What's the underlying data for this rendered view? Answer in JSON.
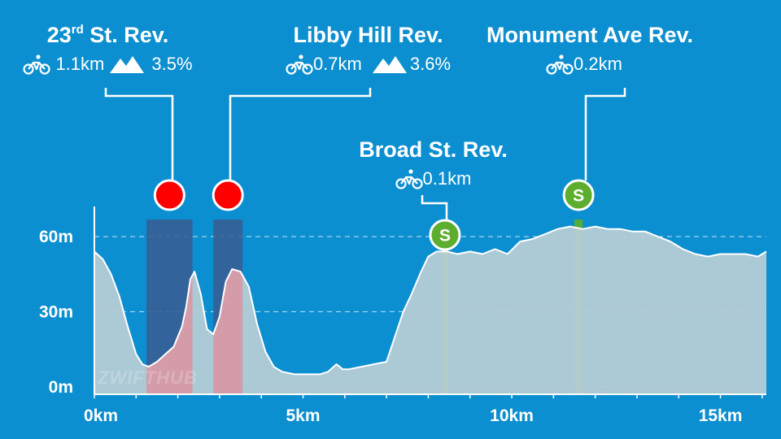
{
  "chart_data": {
    "type": "area",
    "title": "",
    "xlabel": "",
    "ylabel": "",
    "x_unit": "km",
    "y_unit": "m",
    "xlim": [
      0,
      16.1
    ],
    "ylim": [
      -3,
      72
    ],
    "x_ticks": [
      0,
      5,
      10,
      15
    ],
    "x_tick_labels": [
      "0km",
      "5km",
      "10km",
      "15km"
    ],
    "y_ticks": [
      0,
      30,
      60
    ],
    "y_tick_labels": [
      "0m",
      "30m",
      "60m"
    ],
    "grid": "horizontal dashed",
    "elevation_profile": {
      "x": [
        0,
        0.2,
        0.4,
        0.6,
        0.8,
        1.0,
        1.15,
        1.3,
        1.5,
        1.7,
        1.9,
        2.1,
        2.2,
        2.3,
        2.4,
        2.55,
        2.7,
        2.85,
        3.0,
        3.15,
        3.3,
        3.5,
        3.7,
        3.9,
        4.1,
        4.3,
        4.5,
        4.8,
        5.1,
        5.4,
        5.6,
        5.8,
        5.95,
        6.1,
        6.4,
        6.7,
        7.0,
        7.2,
        7.4,
        7.6,
        7.8,
        8.0,
        8.2,
        8.45,
        8.7,
        9.0,
        9.3,
        9.6,
        9.9,
        10.2,
        10.5,
        10.8,
        11.1,
        11.4,
        11.7,
        12.0,
        12.3,
        12.6,
        12.9,
        13.2,
        13.5,
        13.8,
        14.1,
        14.4,
        14.7,
        15.0,
        15.3,
        15.6,
        15.9,
        16.1
      ],
      "y": [
        54,
        51,
        45,
        36,
        24,
        13,
        9,
        8,
        10,
        13,
        16,
        24,
        32,
        43,
        46,
        37,
        23,
        21,
        28,
        42,
        47,
        46,
        40,
        25,
        14,
        8,
        6,
        5,
        5,
        5,
        6,
        9,
        7,
        7,
        8,
        9,
        10,
        20,
        30,
        37,
        45,
        52,
        54,
        54,
        53,
        54,
        53,
        55,
        53,
        58,
        59,
        61,
        63,
        64,
        63,
        64,
        63,
        63,
        62,
        62,
        60,
        58,
        55,
        53,
        52,
        53,
        53,
        53,
        52,
        54
      ]
    },
    "segments": [
      {
        "name": "23rd St. Rev.",
        "type": "climb",
        "color": "#FF0000",
        "x_start": 1.25,
        "x_end": 2.35,
        "length": "1.1km",
        "grade": "3.5%"
      },
      {
        "name": "Libby Hill Rev.",
        "type": "climb",
        "color": "#FF0000",
        "x_start": 2.85,
        "x_end": 3.55,
        "length": "0.7km",
        "grade": "3.6%"
      },
      {
        "name": "Broad St. Rev.",
        "type": "sprint",
        "color": "#5DAE2E",
        "x_start": 8.35,
        "x_end": 8.45,
        "length": "0.1km",
        "grade": ""
      },
      {
        "name": "Monument Ave Rev.",
        "type": "sprint",
        "color": "#5DAE2E",
        "x_start": 11.5,
        "x_end": 11.7,
        "length": "0.2km",
        "grade": ""
      }
    ]
  },
  "labels": {
    "seg1": {
      "title_main": "23",
      "title_sup": "rd",
      "title_rest": " St. Rev.",
      "length": "1.1km",
      "grade": "3.5%"
    },
    "seg2": {
      "title": "Libby Hill Rev.",
      "length": "0.7km",
      "grade": "3.6%"
    },
    "seg3": {
      "title": "Broad St. Rev.",
      "length": "0.1km"
    },
    "seg4": {
      "title": "Monument Ave Rev.",
      "length": "0.2km"
    },
    "sprint_marker_letter": "S"
  },
  "watermark": "ZWIFTHUB",
  "colors": {
    "background": "#0C8FD0",
    "terrain_fill": "#B9CDD6",
    "terrain_stroke": "#FFFFFF",
    "climb_band": "#3A5C91",
    "climb_fill": "#D59AA5",
    "climb_marker": "#FF0000",
    "sprint_band": "#5DAE2E",
    "sprint_marker": "#5DAE2E"
  }
}
